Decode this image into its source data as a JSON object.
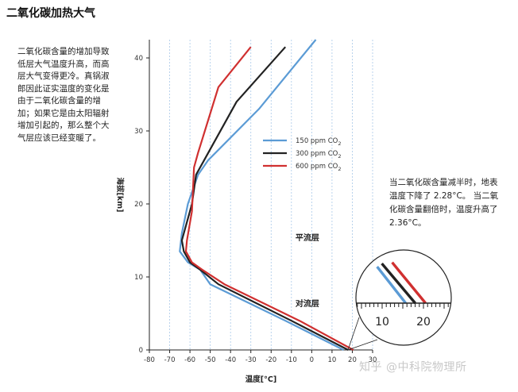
{
  "page": {
    "title": "二氧化碳加热大气",
    "description": "二氧化碳含量的增加导致低层大气温度升高，而高层大气变得更冷。真锅淑郎因此证实温度的变化是由于二氧化碳含量的增加；如果它是由太阳辐射增加引起的，那么整个大气层应该已经变暖了。",
    "note": "当二氧化碳含量减半时，地表温度下降了 2.28°C。 当二氧化碳含量翻倍时，温度升高了 2.36°C。",
    "watermark": "知乎 @中科院物理所"
  },
  "chart_data": {
    "type": "line",
    "title": "",
    "xlabel": "温度[°C]",
    "ylabel": "海拔[km]",
    "xlim": [
      -80,
      30
    ],
    "ylim": [
      0,
      42
    ],
    "xticks": [
      -80,
      -70,
      -60,
      -50,
      -40,
      -30,
      -20,
      -10,
      0,
      10,
      20,
      30
    ],
    "yticks": [
      0,
      10,
      20,
      30,
      40
    ],
    "grid": "vertical dashed lines at every 10°C",
    "legend_position": "right-middle",
    "series": [
      {
        "name": "150 ppm CO",
        "name_subscript": "2",
        "color": "#5b9bd5",
        "x": [
          15.7,
          -13,
          -50,
          -55,
          -61,
          -65,
          -64,
          -61,
          -56,
          -51,
          -26,
          2
        ],
        "y": [
          0,
          4,
          9,
          11,
          12,
          13.5,
          16,
          20,
          24,
          26,
          33,
          42.5
        ]
      },
      {
        "name": "300 ppm CO",
        "name_subscript": "2",
        "color": "#222222",
        "x": [
          18,
          -10,
          -46,
          -55,
          -60,
          -63,
          -64,
          -59,
          -57,
          -53,
          -37,
          -13
        ],
        "y": [
          0,
          4,
          9,
          11,
          12,
          13.5,
          15,
          20,
          24,
          26,
          34,
          41.5
        ]
      },
      {
        "name": "600 ppm CO",
        "name_subscript": "2",
        "color": "#d03030",
        "x": [
          20.5,
          -6,
          -43,
          -54,
          -59,
          -62,
          -61.5,
          -59,
          -58,
          -56,
          -46,
          -30
        ],
        "y": [
          0,
          4,
          9,
          11,
          12,
          13.5,
          15,
          19,
          25,
          27,
          36,
          41.5
        ]
      }
    ],
    "annotations": [
      {
        "text": "平流层",
        "x": -8,
        "y": 15
      },
      {
        "text": "对流层",
        "x": -8,
        "y": 6
      }
    ],
    "inset": {
      "description": "magnified view near the surface",
      "ticks": [
        "10",
        "20"
      ]
    }
  }
}
